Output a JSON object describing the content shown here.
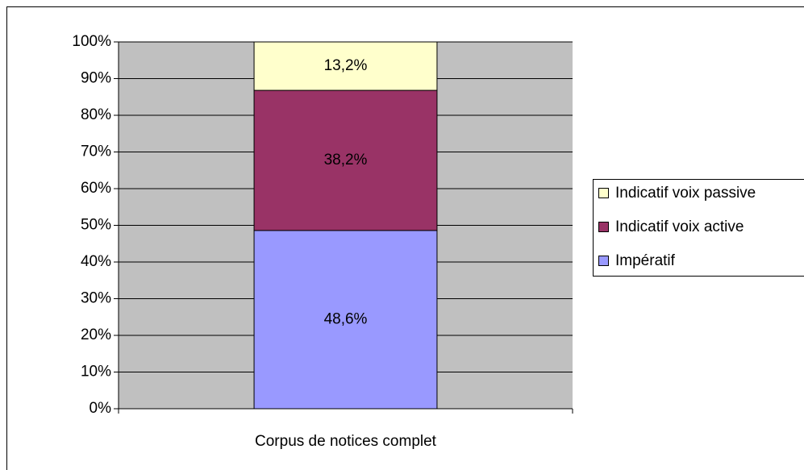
{
  "chart_data": {
    "type": "stacked_bar",
    "categories": [
      "Corpus de notices complet"
    ],
    "series": [
      {
        "name": "Impératif",
        "color": "#9999ff",
        "values": [
          48.6
        ],
        "value_labels": [
          "48,6%"
        ]
      },
      {
        "name": "Indicatif voix active",
        "color": "#993366",
        "values": [
          38.2
        ],
        "value_labels": [
          "38,2%"
        ]
      },
      {
        "name": "Indicatif voix passive",
        "color": "#ffffcc",
        "values": [
          13.2
        ],
        "value_labels": [
          "13,2%"
        ]
      }
    ],
    "ylim": [
      0,
      100
    ],
    "yticks": [
      {
        "value": 0,
        "label": "0%"
      },
      {
        "value": 10,
        "label": "10%"
      },
      {
        "value": 20,
        "label": "20%"
      },
      {
        "value": 30,
        "label": "30%"
      },
      {
        "value": 40,
        "label": "40%"
      },
      {
        "value": 50,
        "label": "50%"
      },
      {
        "value": 60,
        "label": "60%"
      },
      {
        "value": 70,
        "label": "70%"
      },
      {
        "value": 80,
        "label": "80%"
      },
      {
        "value": 90,
        "label": "90%"
      },
      {
        "value": 100,
        "label": "100%"
      }
    ],
    "grid": true,
    "legend": "right"
  }
}
